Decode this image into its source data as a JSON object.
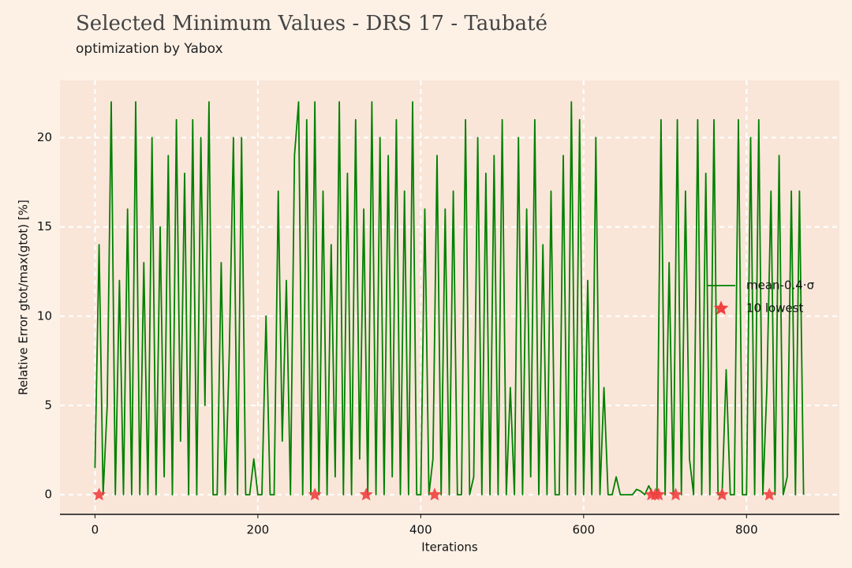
{
  "chart_data": {
    "type": "line",
    "title": "Selected Minimum Values - DRS 17 - Taubaté",
    "subtitle": "optimization by Yabox",
    "x_label": "Iterations",
    "y_label": "Relative Error gtot/max(gtot) [%]",
    "xlim": [
      -43,
      914
    ],
    "ylim": [
      -1.1,
      23.2
    ],
    "xticks": [
      0,
      200,
      400,
      600,
      800
    ],
    "yticks": [
      0,
      5,
      10,
      15,
      20
    ],
    "grid": true,
    "legend": "right",
    "series": [
      {
        "name": "mean-0.4·σ",
        "type": "line",
        "color": "#008000",
        "x": [
          0,
          5,
          10,
          15,
          20,
          25,
          30,
          35,
          40,
          45,
          50,
          55,
          60,
          65,
          70,
          75,
          80,
          85,
          90,
          95,
          100,
          105,
          110,
          115,
          120,
          125,
          130,
          135,
          140,
          145,
          150,
          155,
          160,
          165,
          170,
          175,
          180,
          185,
          190,
          195,
          200,
          205,
          210,
          215,
          220,
          225,
          230,
          235,
          240,
          245,
          250,
          255,
          260,
          265,
          270,
          275,
          280,
          285,
          290,
          295,
          300,
          305,
          310,
          315,
          320,
          325,
          330,
          335,
          340,
          345,
          350,
          355,
          360,
          365,
          370,
          375,
          380,
          385,
          390,
          395,
          400,
          405,
          410,
          415,
          420,
          425,
          430,
          435,
          440,
          445,
          450,
          455,
          460,
          465,
          470,
          475,
          480,
          485,
          490,
          495,
          500,
          505,
          510,
          515,
          520,
          525,
          530,
          535,
          540,
          545,
          550,
          555,
          560,
          565,
          570,
          575,
          580,
          585,
          590,
          595,
          600,
          605,
          610,
          615,
          620,
          625,
          630,
          635,
          640,
          645,
          650,
          655,
          660,
          665,
          670,
          675,
          680,
          685,
          690,
          695,
          700,
          705,
          710,
          715,
          720,
          725,
          730,
          735,
          740,
          745,
          750,
          755,
          760,
          765,
          770,
          775,
          780,
          785,
          790,
          795,
          800,
          805,
          810,
          815,
          820,
          825,
          830,
          835,
          840,
          845,
          850,
          855,
          860,
          865,
          870
        ],
        "values": [
          1.5,
          14,
          0,
          5,
          22,
          0,
          12,
          0,
          16,
          0,
          22,
          0,
          13,
          0,
          20,
          0,
          15,
          1,
          19,
          0,
          21,
          3,
          18,
          0,
          21,
          0,
          20,
          5,
          22,
          0,
          0,
          13,
          0,
          8,
          20,
          0,
          20,
          0,
          0,
          2,
          0,
          0,
          10,
          0,
          0,
          17,
          3,
          12,
          0,
          19,
          22,
          0,
          21,
          0,
          22,
          0,
          17,
          0,
          14,
          1,
          22,
          0,
          18,
          0,
          21,
          2,
          16,
          0,
          22,
          0,
          20,
          0,
          19,
          1,
          21,
          0,
          17,
          0,
          22,
          0,
          0,
          16,
          0,
          2,
          19,
          0,
          16,
          0,
          17,
          0,
          0,
          21,
          0,
          1,
          20,
          0,
          18,
          0,
          19,
          0,
          21,
          0,
          6,
          0,
          20,
          0,
          16,
          1,
          21,
          0,
          14,
          0,
          17,
          0,
          0,
          19,
          0,
          22,
          0,
          21,
          0,
          12,
          0,
          20,
          0,
          6,
          0,
          0,
          1,
          0,
          0,
          0,
          0,
          0.3,
          0.2,
          0,
          0.5,
          0,
          0,
          21,
          0,
          13,
          0,
          21,
          0,
          17,
          2,
          0,
          21,
          0,
          18,
          0,
          21,
          0,
          0,
          7,
          0,
          0,
          21,
          0,
          0,
          20,
          0,
          21,
          0,
          6,
          17,
          0,
          19,
          0,
          1,
          17,
          0,
          17,
          0
        ]
      },
      {
        "name": "10 lowest",
        "type": "scatter",
        "color": "#f04040",
        "x": [
          5,
          270,
          333,
          417,
          683,
          688,
          692,
          713,
          770,
          828
        ],
        "values": [
          0,
          0,
          0,
          0,
          0,
          0,
          0,
          0,
          0,
          0
        ]
      }
    ]
  }
}
